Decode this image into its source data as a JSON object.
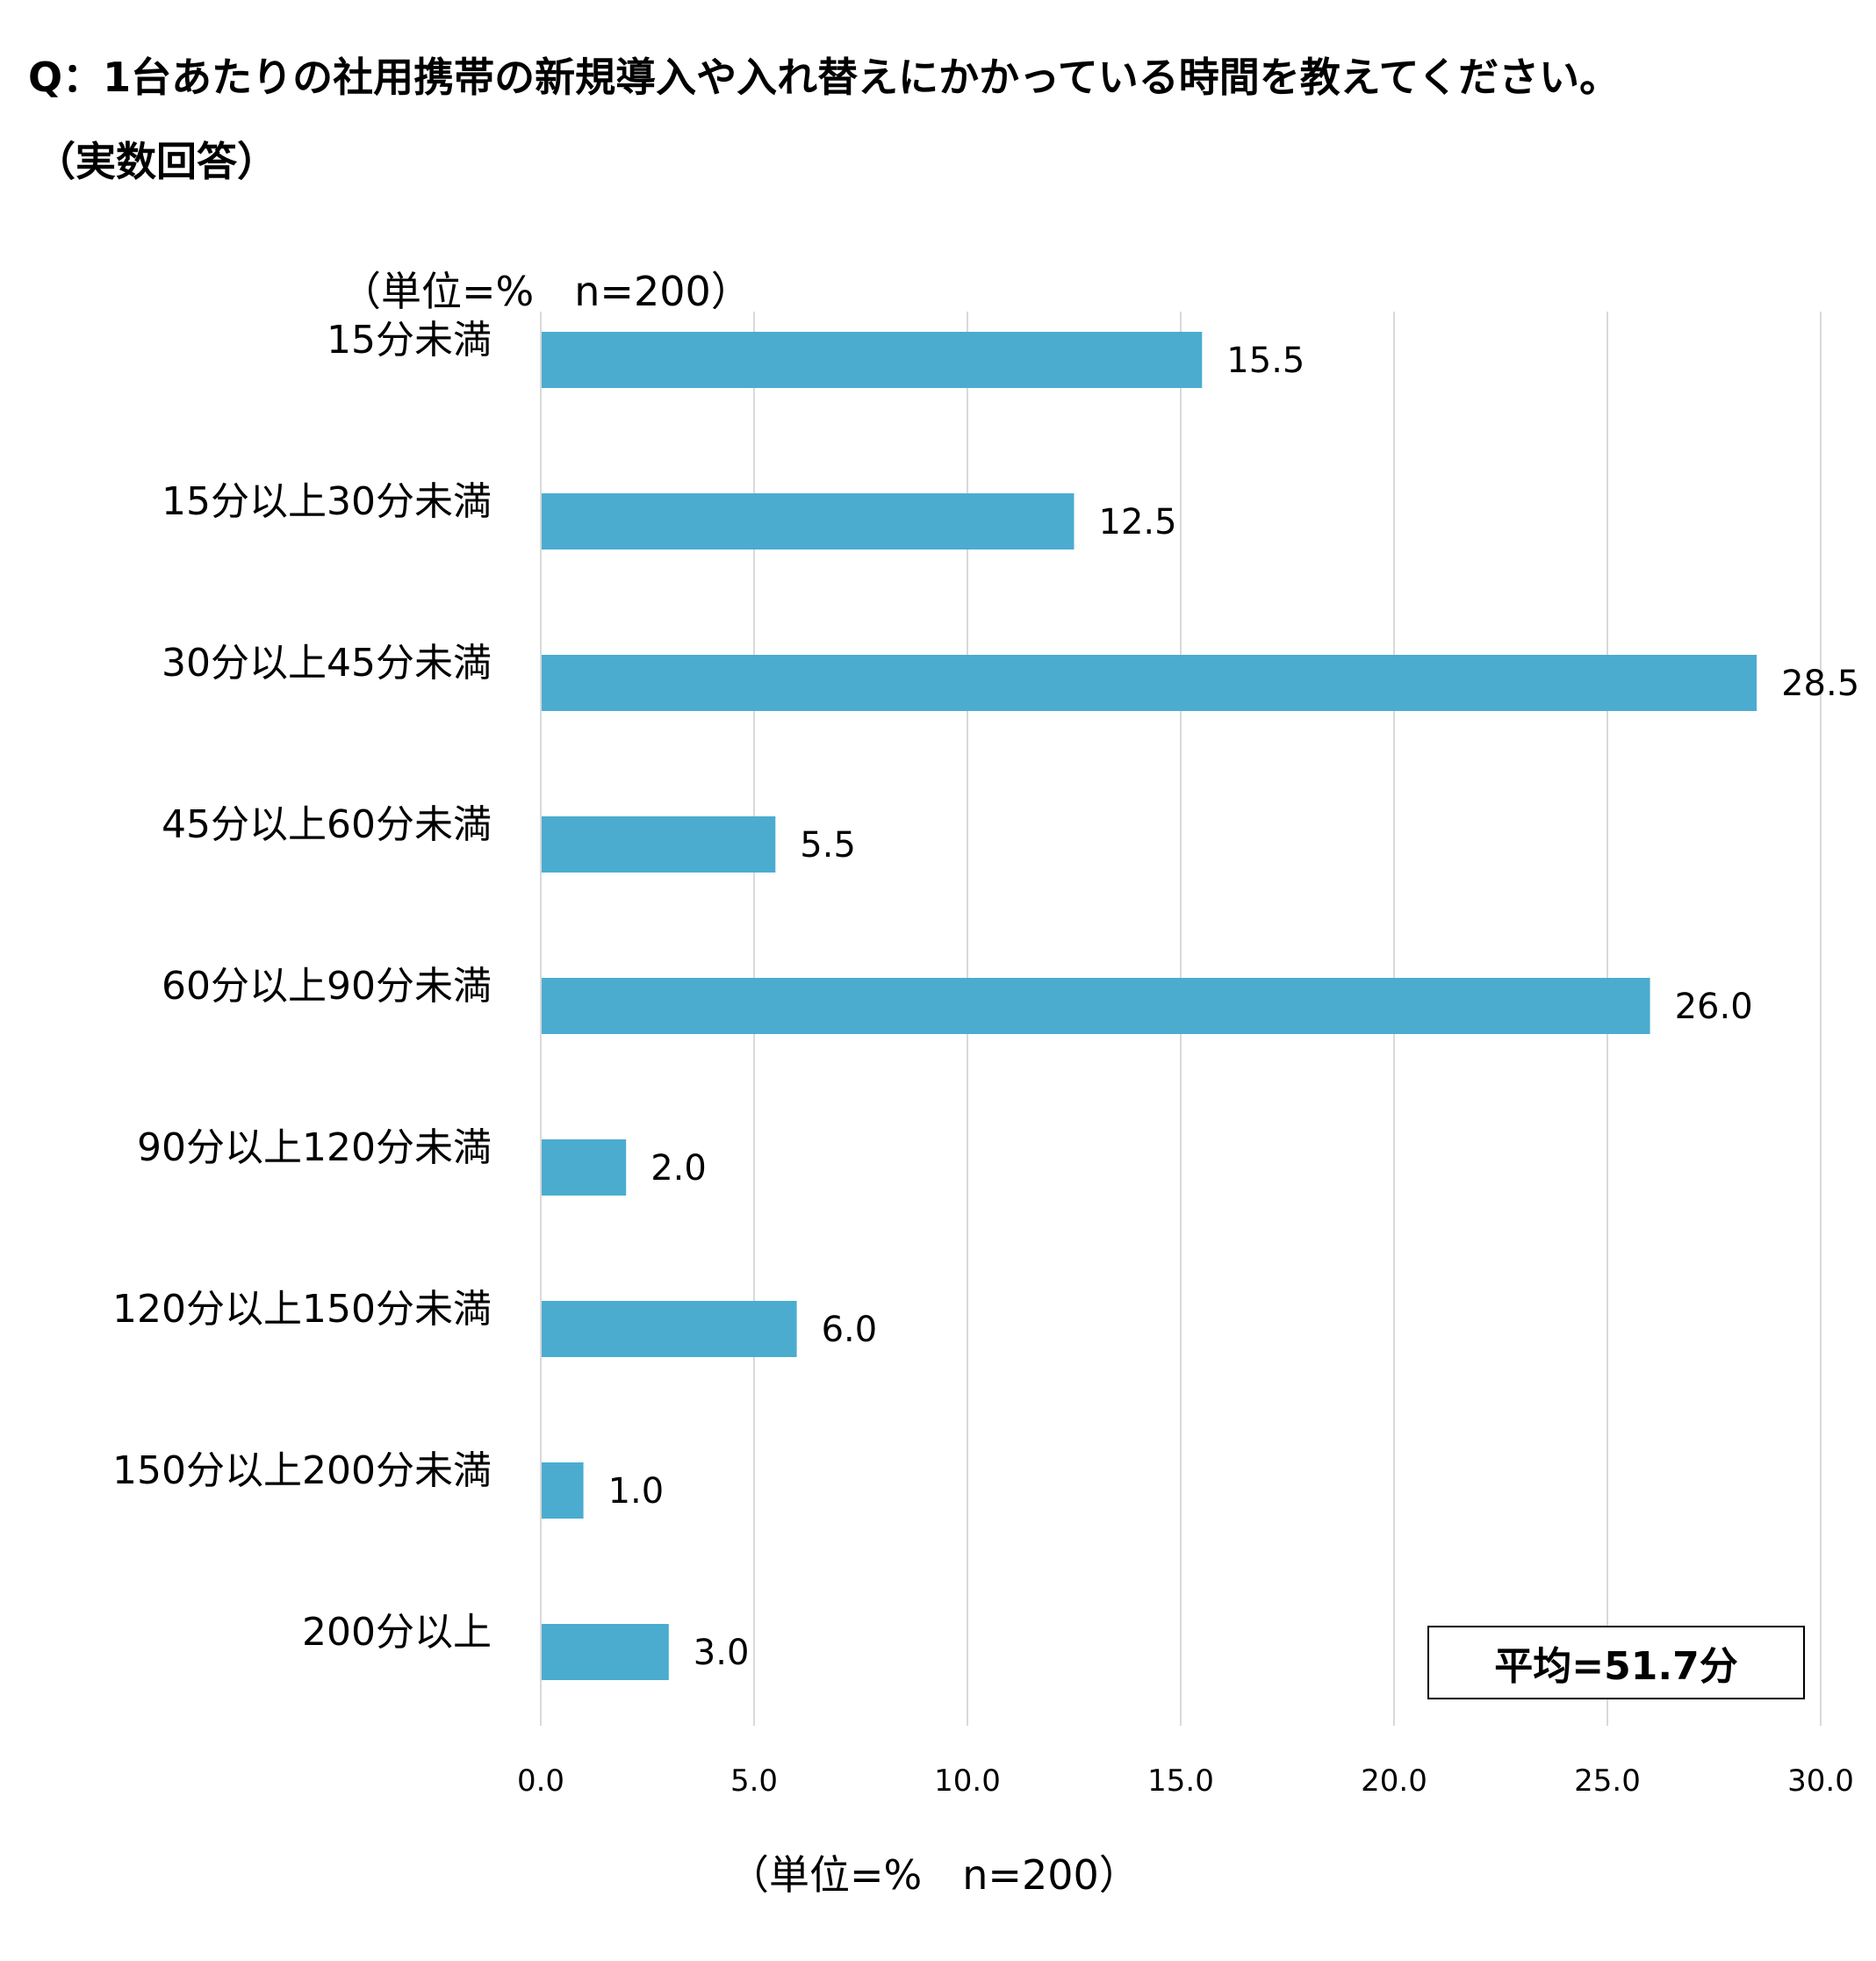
{
  "question": {
    "title": "Q：1台あたりの社用携帯の新規導入や入れ替えにかかっている時間を教えてください。",
    "subtitle": "（実数回答）"
  },
  "unit_label_top": "（単位=%　n=200）",
  "unit_label_bottom": "（単位=%　n=200）",
  "average_label": "平均=51.7分",
  "chart_data": {
    "type": "bar",
    "orientation": "horizontal",
    "categories": [
      "15分未満",
      "15分以上30分未満",
      "30分以上45分未満",
      "45分以上60分未満",
      "60分以上90分未満",
      "90分以上120分未満",
      "120分以上150分未満",
      "150分以上200分未満",
      "200分以上"
    ],
    "values": [
      15.5,
      12.5,
      28.5,
      5.5,
      26.0,
      2.0,
      6.0,
      1.0,
      3.0
    ],
    "xlim": [
      0,
      30
    ],
    "xticks": [
      0,
      5,
      10,
      15,
      20,
      25,
      30
    ],
    "grid": "vertical",
    "bar_color": "#4BACD0",
    "grid_color": "#D9D9D9"
  }
}
